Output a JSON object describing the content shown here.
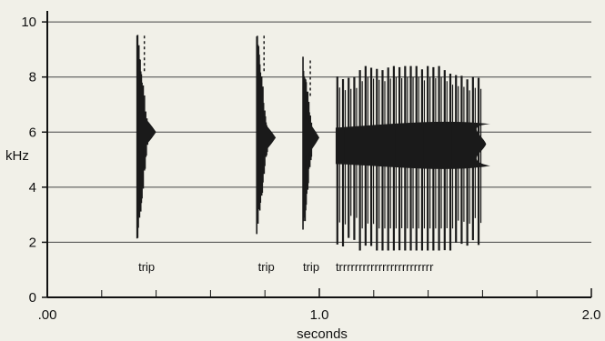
{
  "chart_data": {
    "type": "spectrogram",
    "xlabel": "seconds",
    "ylabel": "kHz",
    "xlim": [
      0,
      2.0
    ],
    "ylim": [
      0,
      10.4
    ],
    "x_ticks": [
      {
        "value": 0.0,
        "label": ".00"
      },
      {
        "value": 1.0,
        "label": "1.0"
      },
      {
        "value": 2.0,
        "label": "2.0"
      }
    ],
    "x_minor_ticks": [
      0.2,
      0.4,
      0.6,
      0.8,
      1.2,
      1.4,
      1.6,
      1.8
    ],
    "y_ticks": [
      0,
      2,
      4,
      6,
      8,
      10
    ],
    "grid": "horizontal",
    "events": [
      {
        "label": "trip",
        "start": 0.33,
        "end": 0.4,
        "low_khz": 1.8,
        "high_khz": 9.8,
        "center_khz": 6.0
      },
      {
        "label": "trip",
        "start": 0.77,
        "end": 0.84,
        "low_khz": 2.1,
        "high_khz": 9.8,
        "center_khz": 5.8
      },
      {
        "label": "trip",
        "start": 0.94,
        "end": 1.0,
        "low_khz": 2.0,
        "high_khz": 8.9,
        "center_khz": 5.8
      },
      {
        "label": "trrrrrrrrrrrrrrrrrrrrrrrr",
        "start": 1.06,
        "end": 1.6,
        "low_khz": 1.7,
        "high_khz": 8.4,
        "center_khz": 5.5,
        "pulses": 26
      }
    ]
  },
  "colors": {
    "background": "#f1f0e8",
    "ink": "#111111",
    "trace": "#1a1a1a",
    "grid": "#444444"
  }
}
